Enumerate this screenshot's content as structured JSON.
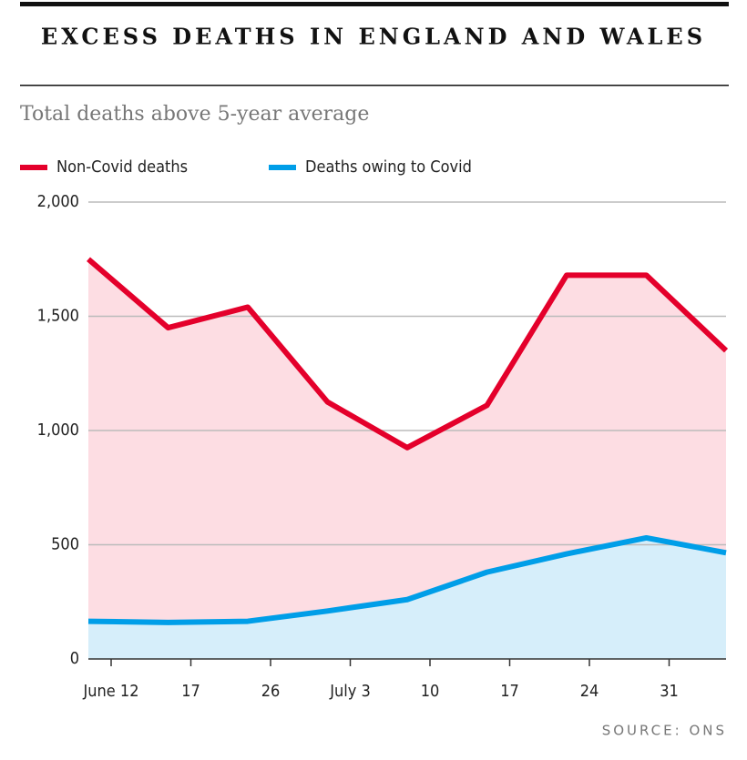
{
  "chart_data": {
    "type": "area",
    "title": "EXCESS DEATHS IN ENGLAND AND WALES",
    "subtitle": "Total deaths above 5-year average",
    "source": "SOURCE: ONS",
    "categories": [
      "June 12",
      "17",
      "26",
      "July 3",
      "10",
      "17",
      "24",
      "31",
      null
    ],
    "series": [
      {
        "name": "Non-Covid deaths",
        "color": "#e4002b",
        "fill": "#fddde3",
        "values": [
          1750,
          1450,
          1540,
          1125,
          925,
          1110,
          1680,
          1680,
          1350
        ]
      },
      {
        "name": "Deaths owing to Covid",
        "color": "#009ee8",
        "fill": "#d6eefa",
        "values": [
          165,
          160,
          165,
          210,
          260,
          380,
          460,
          530,
          465
        ]
      }
    ],
    "ylim": [
      0,
      2000
    ],
    "yticks": [
      0,
      500,
      {
        "value": 1000,
        "label": "1,000"
      },
      {
        "value": 1500,
        "label": "1,500"
      },
      {
        "value": 2000,
        "label": "2,000"
      }
    ],
    "grid": true
  }
}
